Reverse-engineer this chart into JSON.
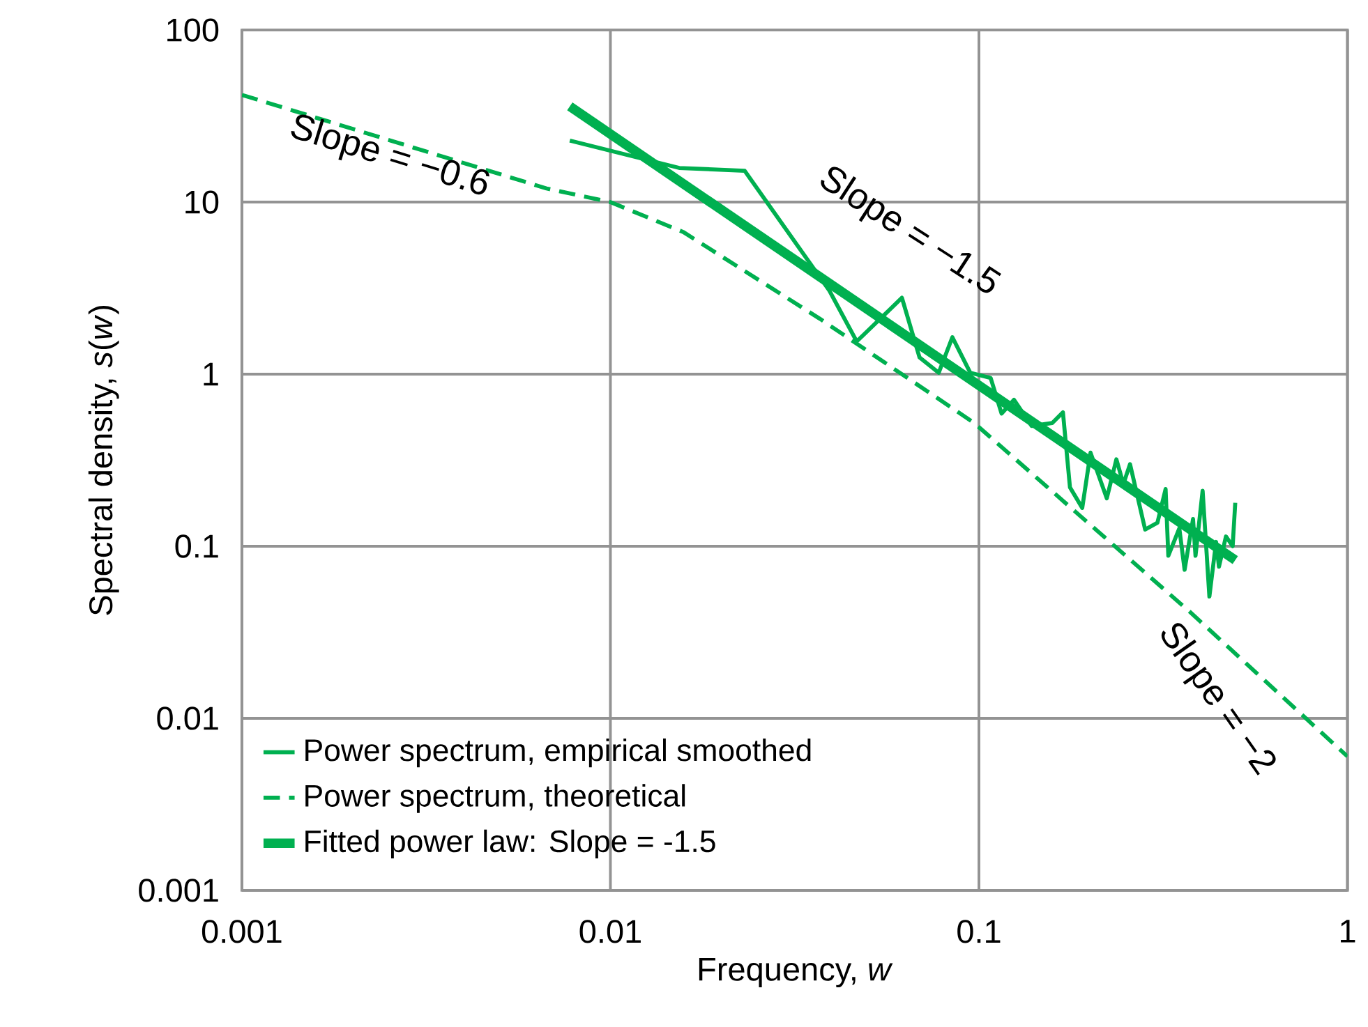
{
  "chart_data": {
    "type": "line",
    "xlabel": "Frequency, *w*",
    "ylabel": "Spectral density, *s*(*w*)",
    "log": "xy",
    "grid": true,
    "legend": "bottom left",
    "xlim": [
      0.001,
      1
    ],
    "ylim": [
      0.001,
      100
    ],
    "xticks": [
      0.001,
      0.01,
      0.1,
      1
    ],
    "yticks": [
      0.001,
      0.01,
      0.1,
      1,
      10,
      100
    ],
    "series": [
      {
        "name": "Power spectrum, empirical smoothed",
        "color": "#00b050",
        "line_style": "solid",
        "x": [
          0.00776,
          0.01537,
          0.02314,
          0.0393,
          0.0466,
          0.0618,
          0.069,
          0.0778,
          0.0847,
          0.0947,
          0.1076,
          0.1152,
          0.1245,
          0.139,
          0.158,
          0.169,
          0.1766,
          0.1907,
          0.2008,
          0.2223,
          0.236,
          0.2466,
          0.257,
          0.2825,
          0.305,
          0.321,
          0.3265,
          0.3497,
          0.3615,
          0.381,
          0.387,
          0.4045,
          0.422,
          0.44,
          0.448,
          0.468,
          0.488,
          0.496
        ],
        "values": [
          22.8,
          15.8,
          15.2,
          3.05,
          1.55,
          2.78,
          1.25,
          1.02,
          1.64,
          1.02,
          0.95,
          0.59,
          0.71,
          0.5,
          0.52,
          0.6,
          0.22,
          0.167,
          0.35,
          0.19,
          0.32,
          0.23,
          0.3,
          0.125,
          0.137,
          0.215,
          0.088,
          0.127,
          0.073,
          0.144,
          0.088,
          0.21,
          0.051,
          0.106,
          0.076,
          0.114,
          0.1,
          0.179
        ]
      },
      {
        "name": "Power spectrum, theoretical",
        "color": "#00b050",
        "line_style": "dashed",
        "x": [
          0.001,
          0.00671,
          0.01,
          0.01577,
          0.037,
          0.0971,
          0.2,
          0.3715,
          1
        ],
        "values": [
          42,
          12,
          10,
          6.7,
          2.1,
          0.52,
          0.134,
          0.042,
          0.006
        ]
      },
      {
        "name": "Fitted power law: Slope = -1.5",
        "color": "#00b050",
        "line_style": "solid",
        "x": [
          0.00776,
          0.496
        ],
        "values": [
          36,
          0.083
        ]
      }
    ],
    "annotations": [
      "Slope = −0.6",
      "Slope = −1.5",
      "Slope = −2"
    ]
  }
}
